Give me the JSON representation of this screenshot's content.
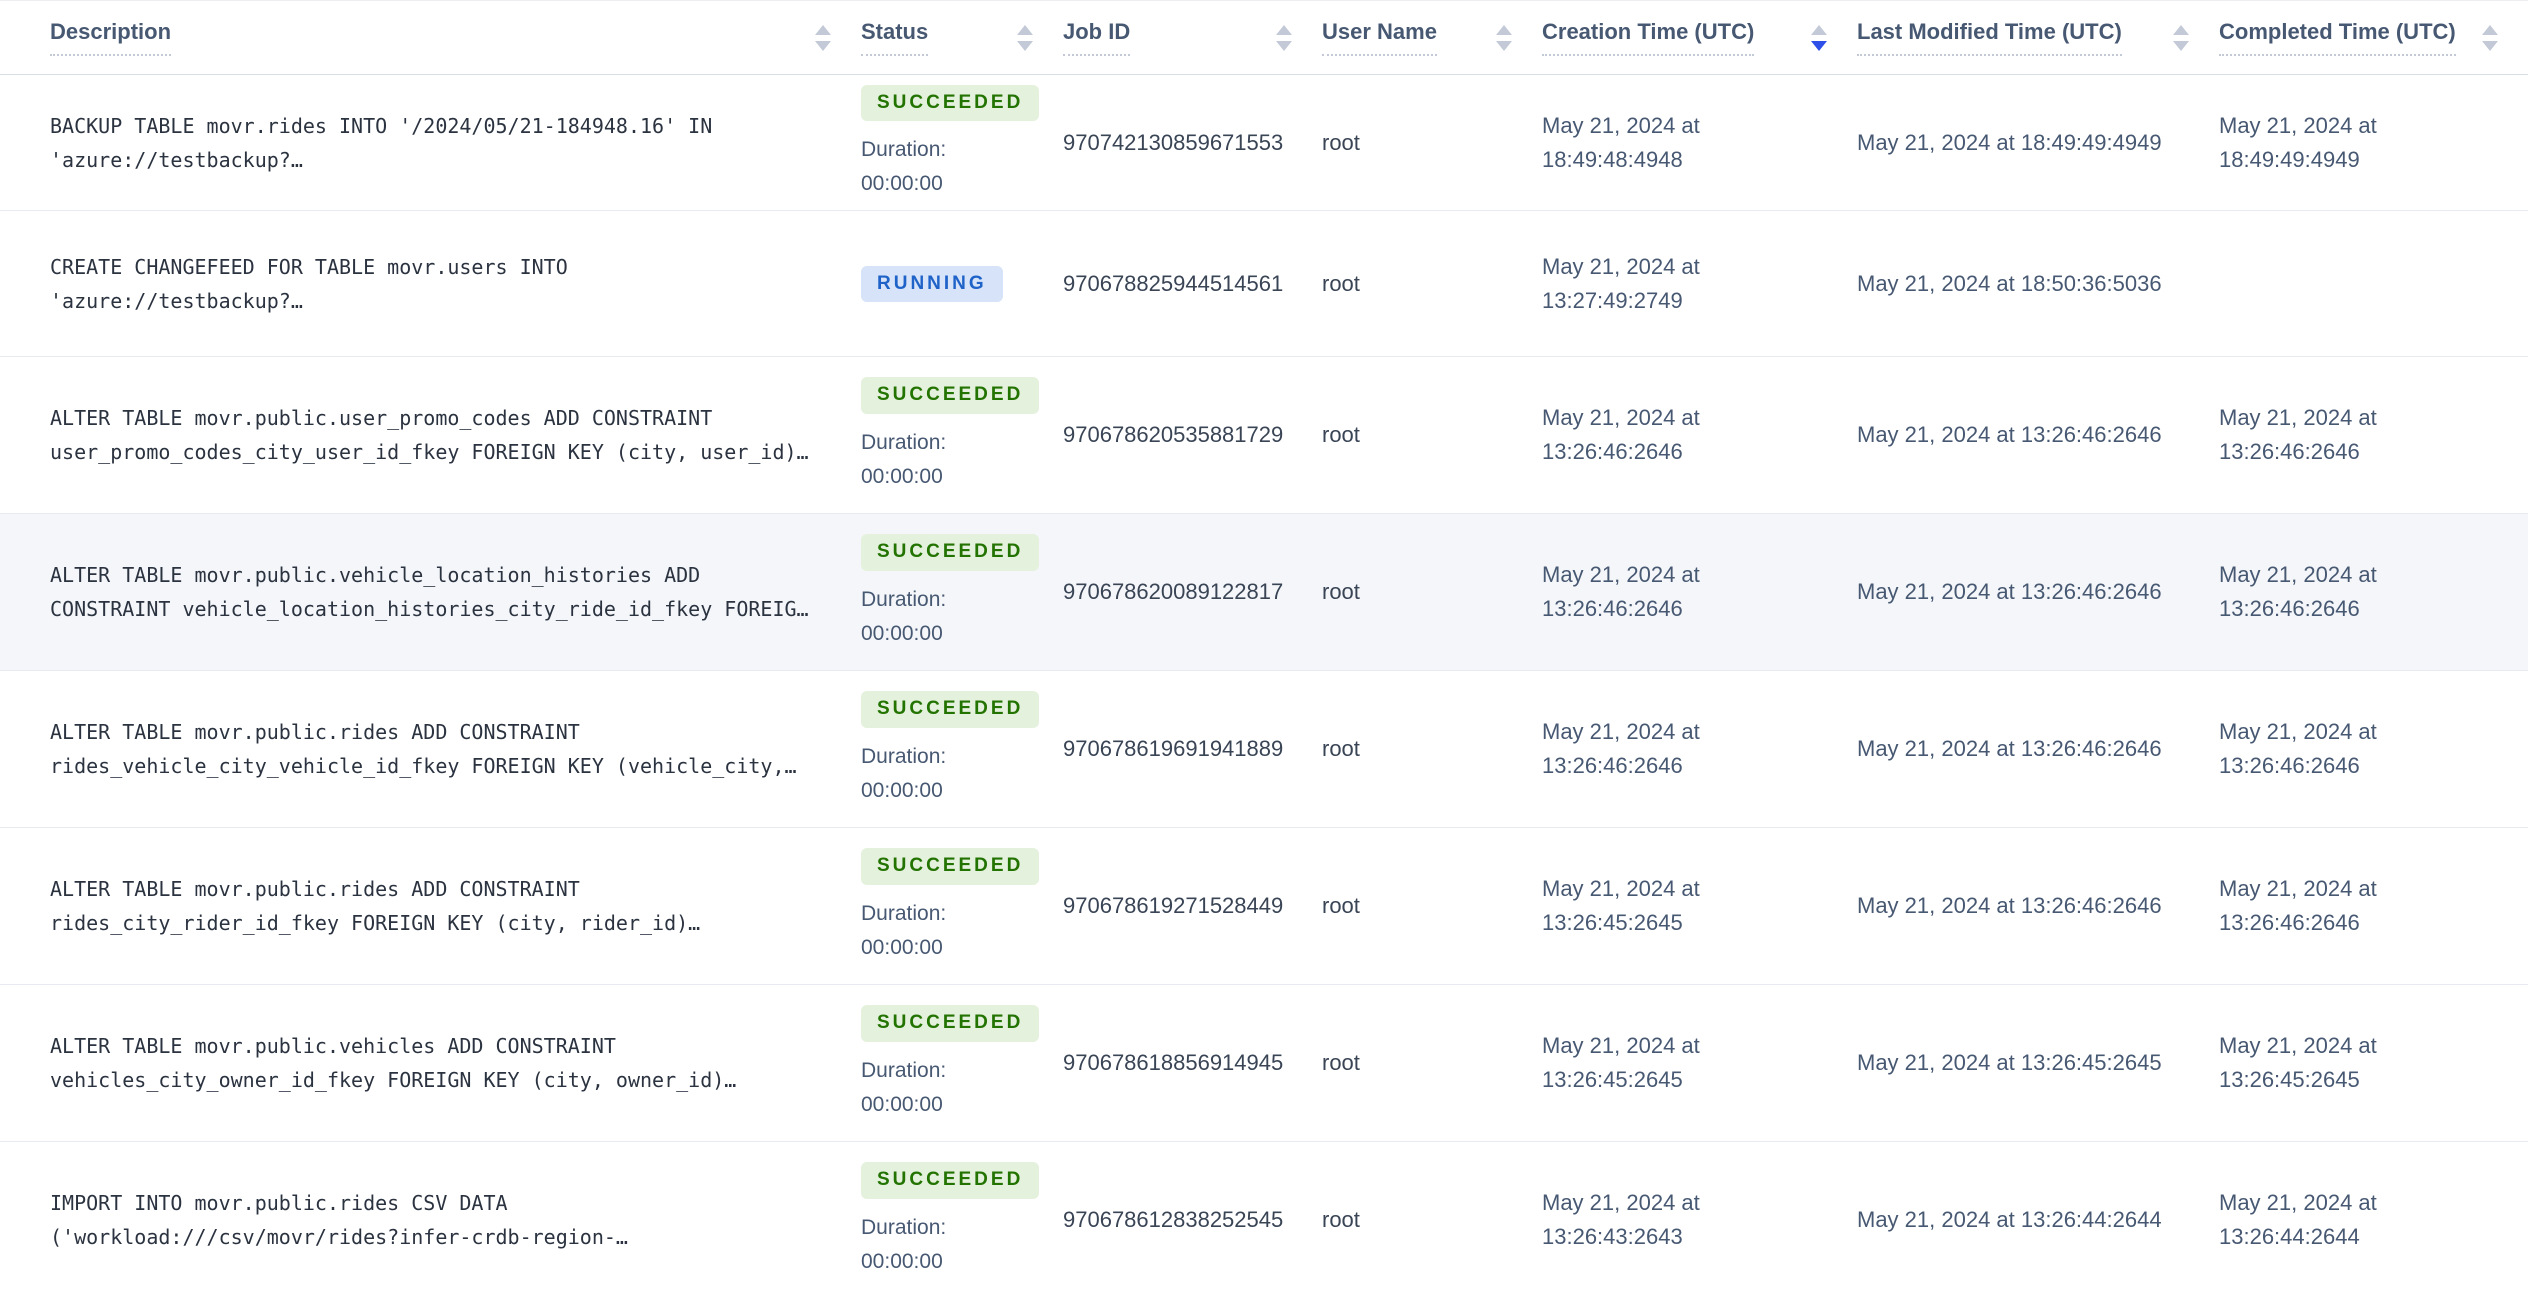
{
  "table": {
    "columns": [
      {
        "label": "Description",
        "sort": "none"
      },
      {
        "label": "Status",
        "sort": "none"
      },
      {
        "label": "Job ID",
        "sort": "none"
      },
      {
        "label": "User Name",
        "sort": "none"
      },
      {
        "label": "Creation Time (UTC)",
        "sort": "desc"
      },
      {
        "label": "Last Modified Time (UTC)",
        "sort": "none"
      },
      {
        "label": "Completed Time (UTC)",
        "sort": "none"
      }
    ],
    "rows": [
      {
        "desc1": "BACKUP TABLE movr.rides INTO '/2024/05/21-184948.16' IN",
        "desc2": "'azure://testbackup?…",
        "status": "SUCCEEDED",
        "duration_label": "Duration:",
        "duration": "00:00:00",
        "job_id": "970742130859671553",
        "user_name": "root",
        "creation_time": "May 21, 2024 at 18:49:48:4948",
        "last_modified_time": "May 21, 2024 at 18:49:49:4949",
        "completed_time": "May 21, 2024 at 18:49:49:4949",
        "highlighted": false
      },
      {
        "desc1": "CREATE CHANGEFEED FOR TABLE movr.users INTO",
        "desc2": "'azure://testbackup?…",
        "status": "RUNNING",
        "duration_label": "",
        "duration": "",
        "job_id": "970678825944514561",
        "user_name": "root",
        "creation_time": "May 21, 2024 at 13:27:49:2749",
        "last_modified_time": "May 21, 2024 at 18:50:36:5036",
        "completed_time": "",
        "highlighted": false
      },
      {
        "desc1": "ALTER TABLE movr.public.user_promo_codes ADD CONSTRAINT",
        "desc2": "user_promo_codes_city_user_id_fkey FOREIGN KEY (city, user_id)…",
        "status": "SUCCEEDED",
        "duration_label": "Duration:",
        "duration": "00:00:00",
        "job_id": "970678620535881729",
        "user_name": "root",
        "creation_time": "May 21, 2024 at 13:26:46:2646",
        "last_modified_time": "May 21, 2024 at 13:26:46:2646",
        "completed_time": "May 21, 2024 at 13:26:46:2646",
        "highlighted": false
      },
      {
        "desc1": "ALTER TABLE movr.public.vehicle_location_histories ADD",
        "desc2": "CONSTRAINT vehicle_location_histories_city_ride_id_fkey FOREIG…",
        "status": "SUCCEEDED",
        "duration_label": "Duration:",
        "duration": "00:00:00",
        "job_id": "970678620089122817",
        "user_name": "root",
        "creation_time": "May 21, 2024 at 13:26:46:2646",
        "last_modified_time": "May 21, 2024 at 13:26:46:2646",
        "completed_time": "May 21, 2024 at 13:26:46:2646",
        "highlighted": true
      },
      {
        "desc1": "ALTER TABLE movr.public.rides ADD CONSTRAINT",
        "desc2": "rides_vehicle_city_vehicle_id_fkey FOREIGN KEY (vehicle_city,…",
        "status": "SUCCEEDED",
        "duration_label": "Duration:",
        "duration": "00:00:00",
        "job_id": "970678619691941889",
        "user_name": "root",
        "creation_time": "May 21, 2024 at 13:26:46:2646",
        "last_modified_time": "May 21, 2024 at 13:26:46:2646",
        "completed_time": "May 21, 2024 at 13:26:46:2646",
        "highlighted": false
      },
      {
        "desc1": "ALTER TABLE movr.public.rides ADD CONSTRAINT",
        "desc2": "rides_city_rider_id_fkey FOREIGN KEY (city, rider_id)…",
        "status": "SUCCEEDED",
        "duration_label": "Duration:",
        "duration": "00:00:00",
        "job_id": "970678619271528449",
        "user_name": "root",
        "creation_time": "May 21, 2024 at 13:26:45:2645",
        "last_modified_time": "May 21, 2024 at 13:26:46:2646",
        "completed_time": "May 21, 2024 at 13:26:46:2646",
        "highlighted": false
      },
      {
        "desc1": "ALTER TABLE movr.public.vehicles ADD CONSTRAINT",
        "desc2": "vehicles_city_owner_id_fkey FOREIGN KEY (city, owner_id)…",
        "status": "SUCCEEDED",
        "duration_label": "Duration:",
        "duration": "00:00:00",
        "job_id": "970678618856914945",
        "user_name": "root",
        "creation_time": "May 21, 2024 at 13:26:45:2645",
        "last_modified_time": "May 21, 2024 at 13:26:45:2645",
        "completed_time": "May 21, 2024 at 13:26:45:2645",
        "highlighted": false
      },
      {
        "desc1": "IMPORT INTO movr.public.rides CSV DATA",
        "desc2": "('workload:///csv/movr/rides?infer-crdb-region-…",
        "status": "SUCCEEDED",
        "duration_label": "Duration:",
        "duration": "00:00:00",
        "job_id": "970678612838252545",
        "user_name": "root",
        "creation_time": "May 21, 2024 at 13:26:43:2643",
        "last_modified_time": "May 21, 2024 at 13:26:44:2644",
        "completed_time": "May 21, 2024 at 13:26:44:2644",
        "highlighted": false
      }
    ]
  },
  "colors": {
    "succeeded_badge_bg": "#e4f1dd",
    "succeeded_badge_text": "#237300",
    "running_badge_bg": "#d6e3f8",
    "running_badge_text": "#1f63c9",
    "active_sort_arrow": "#2e4fe8",
    "header_text": "#475872",
    "row_highlight_bg": "#f4f6f9"
  }
}
